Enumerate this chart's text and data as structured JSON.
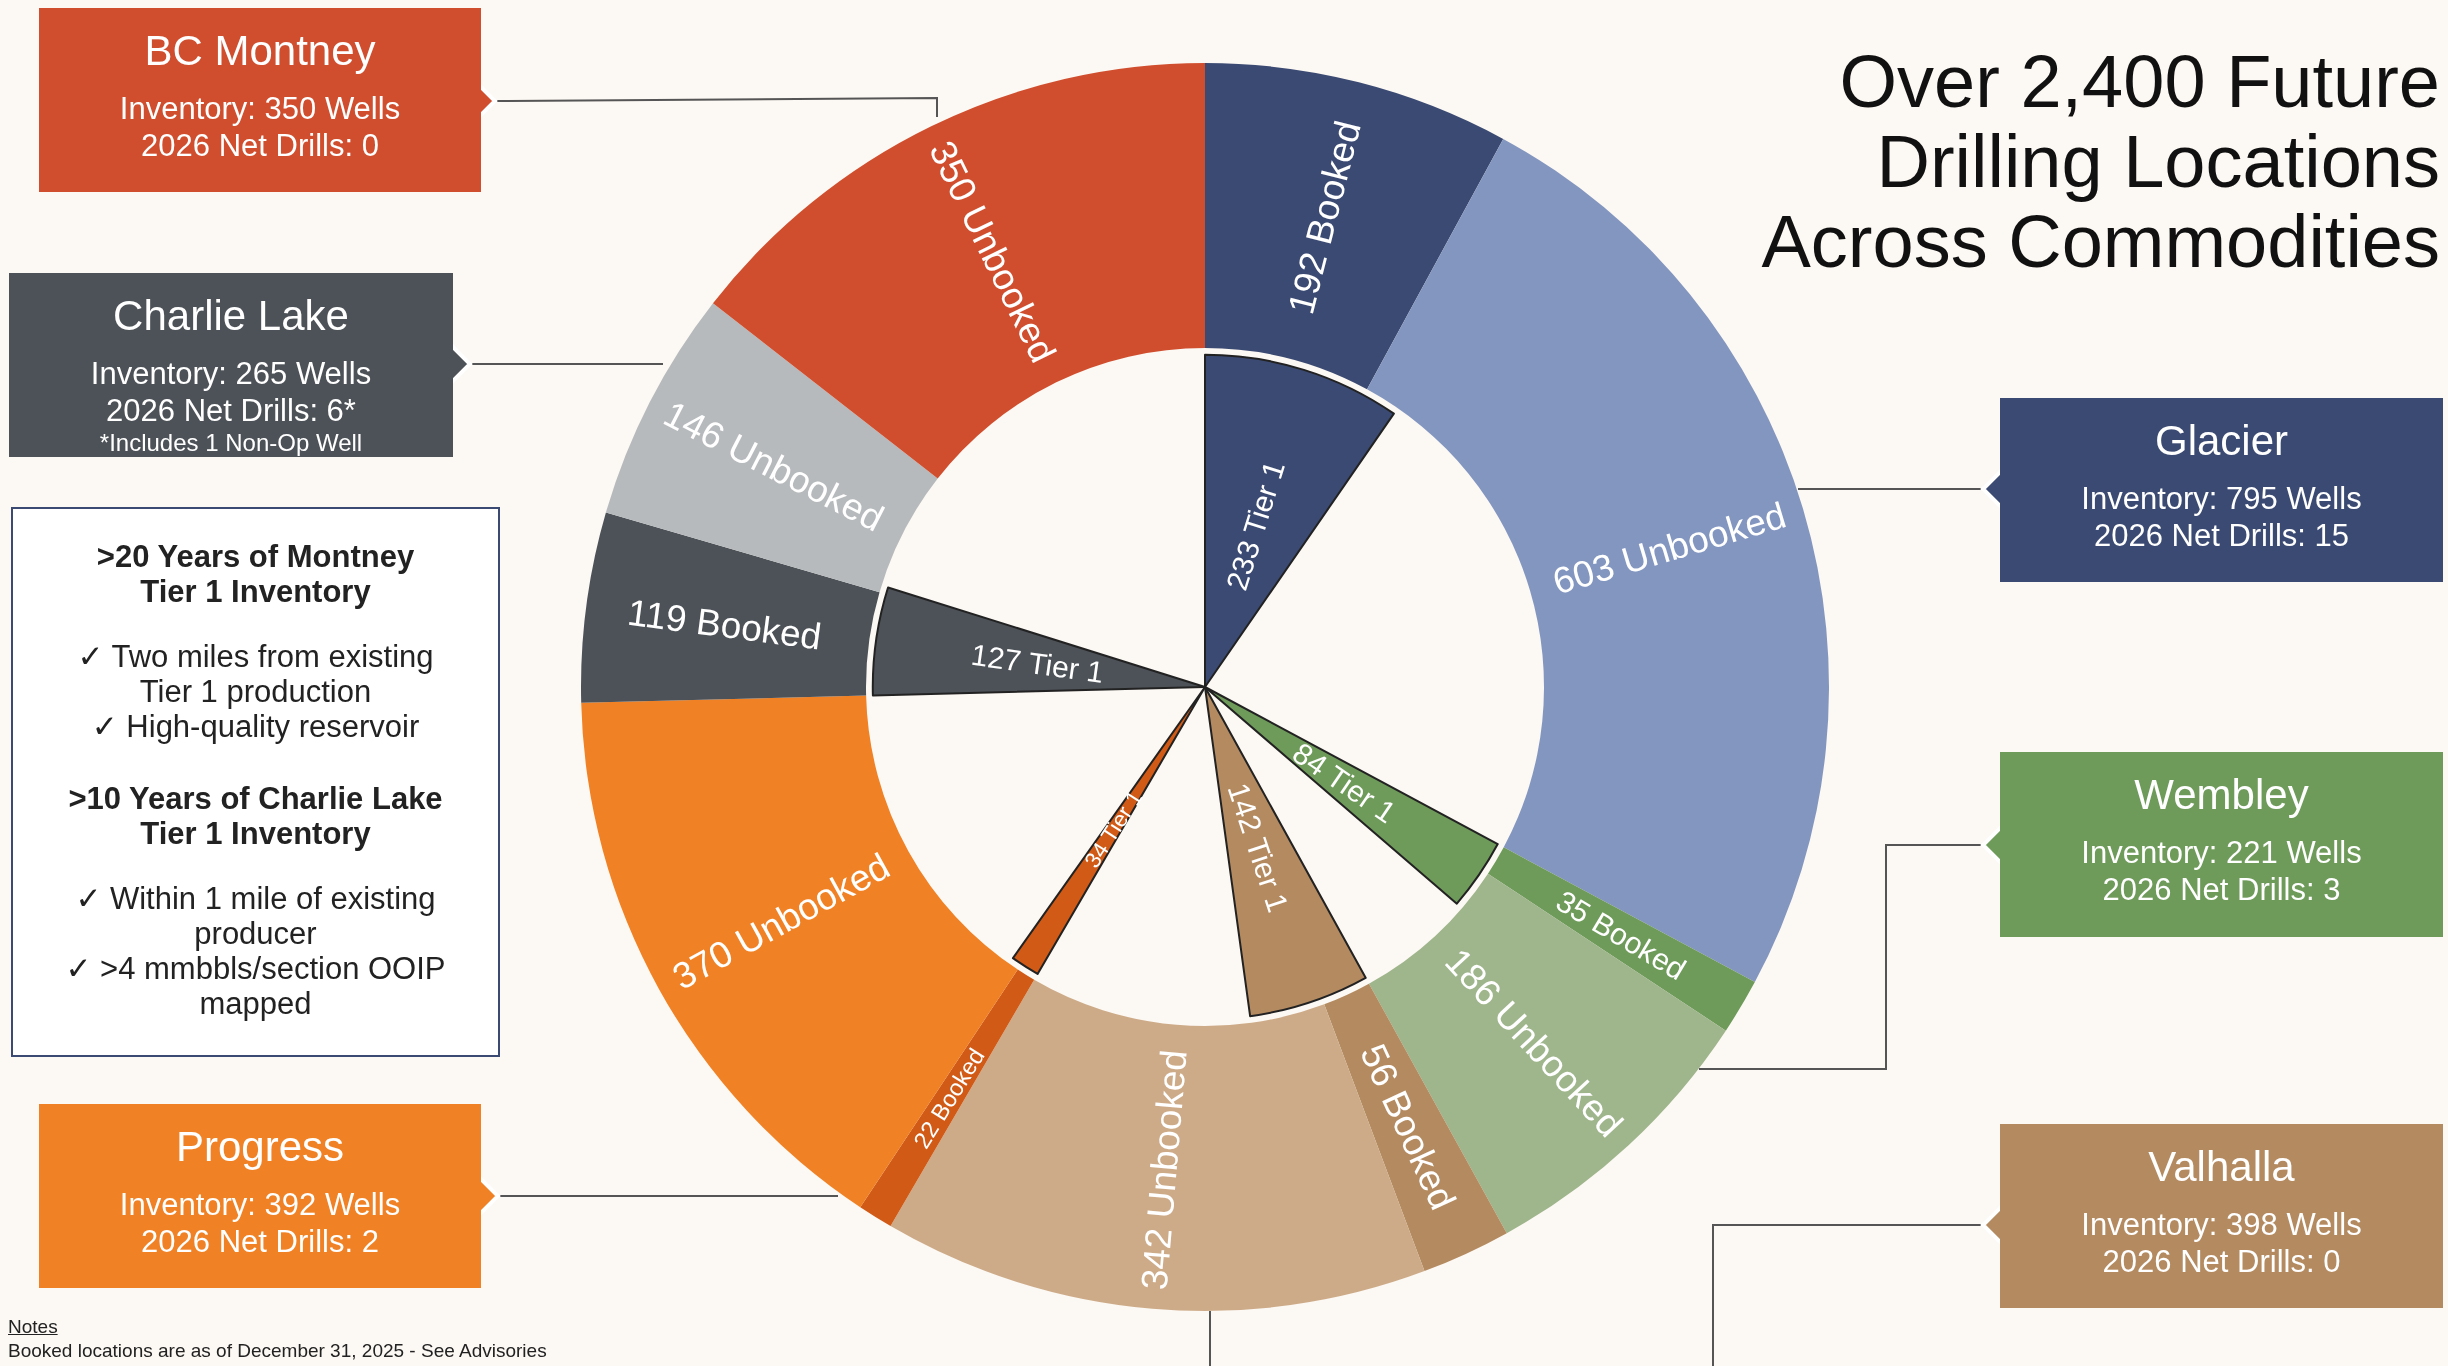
{
  "chart_data": {
    "type": "donut",
    "title": "Over 2,400 Future Drilling Locations Across Commodities",
    "categories": [
      "192 Booked",
      "603 Unbooked",
      "35 Booked",
      "186 Unbooked",
      "56 Booked",
      "342 Unbooked",
      "22 Booked",
      "370 Unbooked",
      "119 Booked",
      "146 Unbooked",
      "350 Unbooked"
    ],
    "series": [
      {
        "values": [
          192,
          603,
          35,
          186,
          56,
          342,
          22,
          370,
          119,
          146,
          350
        ],
        "colors": [
          "#3b4a72",
          "#8396c0",
          "#6e9a5a",
          "#9fb58c",
          "#b48a60",
          "#cdab88",
          "#d05a16",
          "#f08124",
          "#4d5258",
          "#b7babd",
          "#d04e2e"
        ]
      },
      {
        "type": "pie",
        "values": [
          233,
          null,
          84,
          null,
          142,
          null,
          34,
          null,
          127,
          null,
          null
        ],
        "value_labels": [
          "233 Tier 1",
          null,
          "84 Tier 1",
          null,
          "142 Tier 1",
          null,
          "34 Tier 1",
          null,
          "127 Tier 1",
          null,
          null
        ],
        "colors": [
          "#3b4a72",
          null,
          "#6e9a5a",
          null,
          "#b48a60",
          null,
          "#d05a16",
          null,
          "#4d5258",
          null,
          null
        ]
      }
    ],
    "annotations": [
      "BC Montney\nInventory: 350 Wells\n2026 Net Drills: 0",
      "Charlie Lake\nInventory: 265 Wells\n2026 Net Drills: 6*\n*Includes 1 Non-Op Well",
      ">20 Years of Montney\nTier 1 Inventory",
      "✓ Two miles from existing\nTier 1 production\n✓ High-quality reservoir",
      ">10 Years of Charlie Lake\nTier 1 Inventory",
      "✓ Within 1 mile of existing\nproducer\n✓ >4 mmbbls/section OOIP\nmapped",
      "Progress\nInventory: 392 Wells\n2026 Net Drills: 2",
      "Glacier\nInventory: 795 Wells\n2026 Net Drills: 15",
      "Wembley\nInventory: 221 Wells\n2026 Net Drills: 3",
      "Valhalla\nInventory: 398 Wells\n2026 Net Drills: 0",
      "Notes",
      "Booked locations are as of December 31, 2025 - See Advisories"
    ]
  }
}
